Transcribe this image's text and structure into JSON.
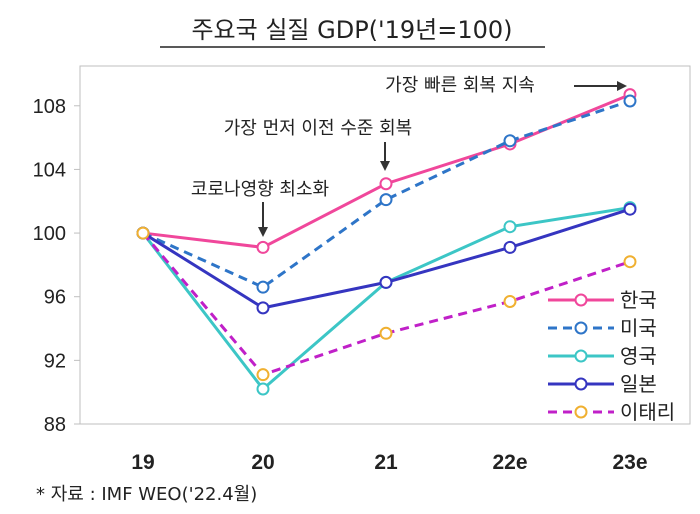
{
  "chart_data": {
    "type": "line",
    "title": "주요국 실질 GDP('19년=100)",
    "source_note": "* 자료 : IMF WEO('22.4월)",
    "categories": [
      "19",
      "20",
      "21",
      "22e",
      "23e"
    ],
    "yticks": [
      88,
      92,
      96,
      100,
      104,
      108
    ],
    "ylim": [
      88,
      110.5
    ],
    "grid": false,
    "legend_position": "bottom-right",
    "series": [
      {
        "name": "한국",
        "color": "#f0479b",
        "dashed": false,
        "values": [
          100,
          99.1,
          103.1,
          105.6,
          108.7
        ]
      },
      {
        "name": "미국",
        "color": "#2e75c8",
        "dashed": true,
        "values": [
          100,
          96.6,
          102.1,
          105.8,
          108.3
        ]
      },
      {
        "name": "영국",
        "color": "#3cc6c6",
        "dashed": false,
        "values": [
          100,
          90.2,
          96.9,
          100.4,
          101.6
        ]
      },
      {
        "name": "일본",
        "color": "#3535c0",
        "dashed": false,
        "values": [
          100,
          95.3,
          96.9,
          99.1,
          101.5
        ]
      },
      {
        "name": "이태리",
        "color": "#c020c8",
        "dashed": true,
        "marker_color": "#f0b030",
        "values": [
          100,
          91.1,
          93.7,
          95.7,
          98.2
        ]
      }
    ],
    "annotations": [
      {
        "text": "코로나영향 최소화",
        "category": "20",
        "series": "한국"
      },
      {
        "text": "가장 먼저 이전 수준 회복",
        "category": "21",
        "series": "한국"
      },
      {
        "text": "가장 빠른 회복 지속",
        "category": "23e",
        "series": "한국"
      }
    ]
  }
}
